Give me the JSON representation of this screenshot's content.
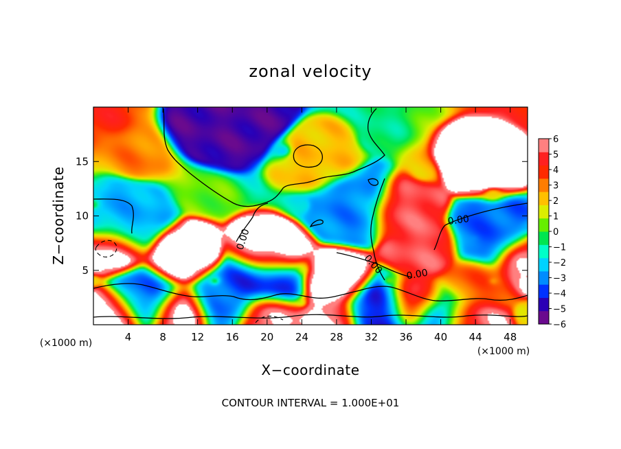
{
  "chart_data": {
    "type": "heatmap",
    "title": "zonal velocity",
    "xlabel": "X−coordinate",
    "ylabel": "Z−coordinate",
    "x_unit_label": "(×1000 m)",
    "y_unit_label": "(×1000 m)",
    "xlim": [
      0,
      50
    ],
    "ylim": [
      0,
      20
    ],
    "x_ticks": [
      4,
      8,
      12,
      16,
      20,
      24,
      28,
      32,
      36,
      40,
      44,
      48
    ],
    "y_ticks": [
      5,
      10,
      15
    ],
    "colorbar": {
      "ticks": [
        6,
        5,
        4,
        3,
        2,
        1,
        0,
        "−1",
        "−2",
        "−3",
        "−4",
        "−5",
        "−6"
      ],
      "range": [
        -6,
        6
      ],
      "colors": [
        "#6a0a8e",
        "#2b00b5",
        "#0032ff",
        "#008cff",
        "#00d2ff",
        "#00ffc8",
        "#00e650",
        "#66ee00",
        "#dcee00",
        "#ffc000",
        "#ff7d00",
        "#ff2a00",
        "#ff2020",
        "#ff8080"
      ]
    },
    "contour_label": "0.00",
    "footer": "CONTOUR INTERVAL = 1.000E+01",
    "background_regime": [
      {
        "region": "upper-left",
        "value": 5
      },
      {
        "region": "upper-middle",
        "value": -5
      },
      {
        "region": "upper-right",
        "value": 5
      },
      {
        "region": "middle-left",
        "value": 0
      },
      {
        "region": "middle-right",
        "value": -3
      },
      {
        "region": "lower-band",
        "value": 2
      }
    ],
    "features": [
      {
        "type": "high",
        "x": 45,
        "z": 15,
        "value": 8
      },
      {
        "type": "high",
        "x": 20.5,
        "z": 6.5,
        "value": 8
      },
      {
        "type": "high",
        "x": 10,
        "z": 6,
        "value": 8
      },
      {
        "type": "high",
        "x": 28,
        "z": 4,
        "value": 8
      },
      {
        "type": "high",
        "x": 35.5,
        "z": 10.5,
        "value": 6
      },
      {
        "type": "high",
        "x": 38,
        "z": 7,
        "value": 6
      },
      {
        "type": "high",
        "x": 2,
        "z": 7,
        "value": 8
      },
      {
        "type": "high",
        "x": 49.5,
        "z": 6,
        "value": 7
      },
      {
        "type": "high",
        "x": 2,
        "z": 1,
        "value": 8
      },
      {
        "type": "high",
        "x": 10,
        "z": 1.2,
        "value": 8
      },
      {
        "type": "high",
        "x": 20,
        "z": 0.8,
        "value": 7
      },
      {
        "type": "high",
        "x": 27,
        "z": 0.6,
        "value": 7
      },
      {
        "type": "high",
        "x": 37,
        "z": 2,
        "value": 7
      },
      {
        "type": "high",
        "x": 43,
        "z": 0.4,
        "value": 7
      },
      {
        "type": "high",
        "x": 44,
        "z": 3.7,
        "value": 4
      },
      {
        "type": "high",
        "x": 26,
        "z": 15,
        "value": 2.5
      },
      {
        "type": "low",
        "x": 16,
        "z": 19,
        "value": -6
      },
      {
        "type": "low",
        "x": 30,
        "z": 11,
        "value": -3.5
      },
      {
        "type": "low",
        "x": 46,
        "z": 8,
        "value": -4
      },
      {
        "type": "low",
        "x": 3,
        "z": 9,
        "value": -3
      },
      {
        "type": "low",
        "x": 20,
        "z": 4,
        "value": -5
      },
      {
        "type": "low",
        "x": 6,
        "z": 2.5,
        "value": -4
      },
      {
        "type": "low",
        "x": 15,
        "z": 2.2,
        "value": -4
      },
      {
        "type": "low",
        "x": 33,
        "z": 1.5,
        "value": -5
      },
      {
        "type": "low",
        "x": 40,
        "z": 0.8,
        "value": -4
      }
    ]
  }
}
